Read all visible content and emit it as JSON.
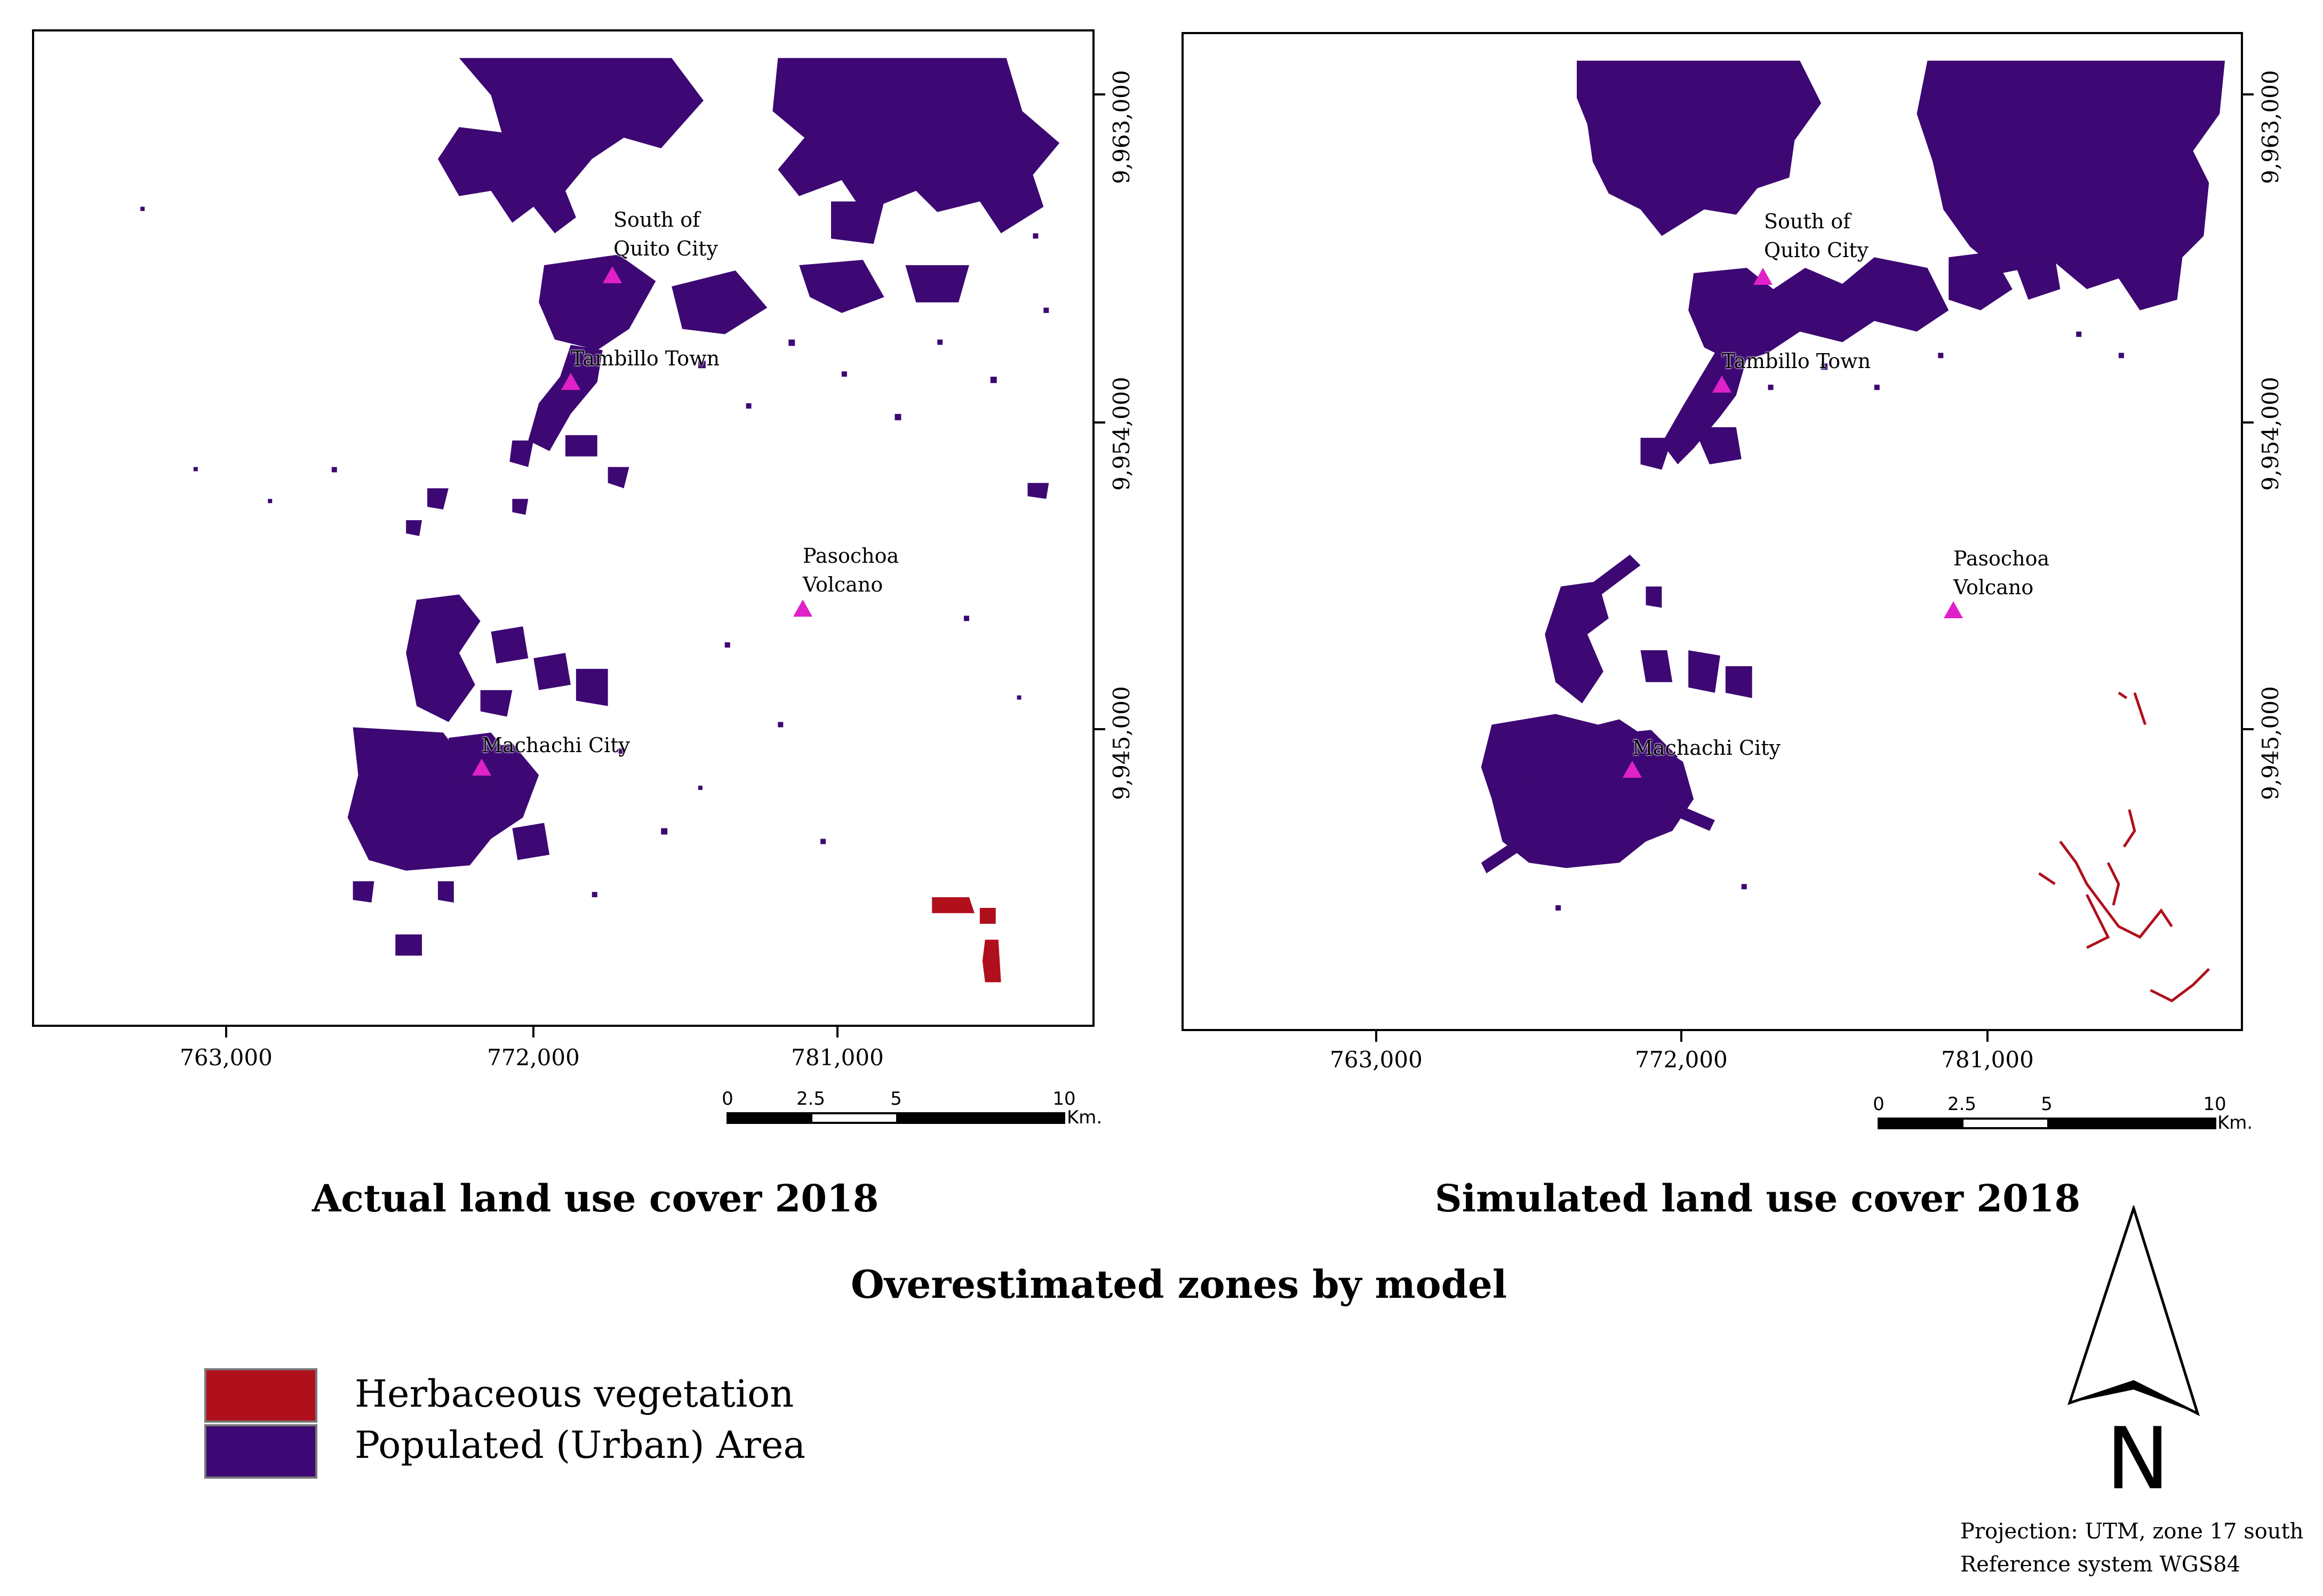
{
  "colors": {
    "urban": "#3d0873",
    "herbaceous": "#b0101c",
    "town_marker": "#e020c8"
  },
  "left_panel": {
    "title": "Actual land use cover 2018",
    "x_ticks": [
      "763,000",
      "772,000",
      "781,000"
    ],
    "y_ticks": [
      "9,963,000",
      "9,954,000",
      "9,945,000"
    ],
    "places": [
      "South of\nQuito City",
      "Tambillo Town",
      "Pasochoa\nVolcano",
      "Machachi City"
    ],
    "scale": {
      "labels": [
        "0",
        "2.5",
        "5",
        "10"
      ],
      "unit": "Km."
    }
  },
  "right_panel": {
    "title": "Simulated land use cover 2018",
    "x_ticks": [
      "763,000",
      "772,000",
      "781,000"
    ],
    "y_ticks": [
      "9,963,000",
      "9,954,000",
      "9,945,000"
    ],
    "places": [
      "South of\nQuito City",
      "Tambillo Town",
      "Pasochoa\nVolcano",
      "Machachi City"
    ],
    "scale": {
      "labels": [
        "0",
        "2.5",
        "5",
        "10"
      ],
      "unit": "Km."
    }
  },
  "main_title": "Overestimated zones by model",
  "legend": [
    {
      "label": "Herbaceous vegetation",
      "color": "#b0101c"
    },
    {
      "label": "Populated (Urban) Area",
      "color": "#3d0873"
    }
  ],
  "north_arrow": {
    "letter": "N"
  },
  "notes": [
    "Projection: UTM, zone 17 south",
    "Reference system WGS84"
  ]
}
